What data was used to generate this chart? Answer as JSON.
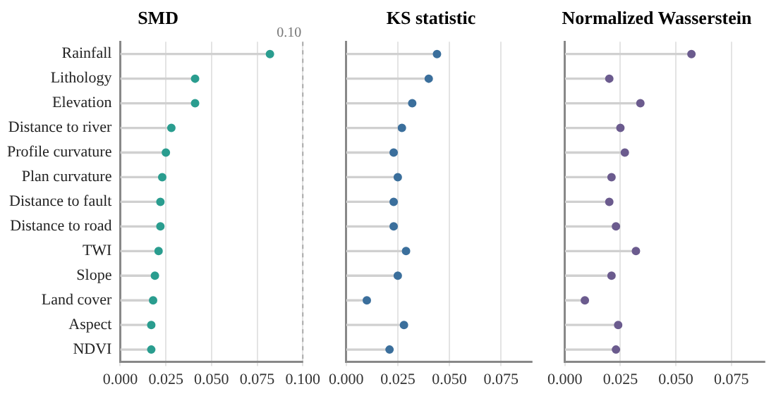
{
  "chart_data": [
    {
      "type": "lollipop",
      "orientation": "horizontal",
      "title": "SMD",
      "categories": [
        "Rainfall",
        "Lithology",
        "Elevation",
        "Distance to river",
        "Profile curvature",
        "Plan curvature",
        "Distance to fault",
        "Distance to road",
        "TWI",
        "Slope",
        "Land cover",
        "Aspect",
        "NDVI"
      ],
      "series": [
        {
          "color": "#2a9d8f",
          "values": [
            0.082,
            0.041,
            0.041,
            0.028,
            0.025,
            0.023,
            0.022,
            0.022,
            0.021,
            0.019,
            0.018,
            0.017,
            0.017
          ]
        }
      ],
      "xlim": [
        0,
        0.1
      ],
      "xticks": [
        {
          "value": 0,
          "label": "0.000"
        },
        {
          "value": 0.025,
          "label": "0.025"
        },
        {
          "value": 0.05,
          "label": "0.050"
        },
        {
          "value": 0.075,
          "label": "0.075"
        },
        {
          "value": 0.1,
          "label": "0.100"
        }
      ],
      "grid": "x",
      "marker": "circle",
      "ref_lines": [
        {
          "axis": "x",
          "value": 0.1,
          "label": "0.10",
          "color": "#aaaaaa",
          "line_style": "dashed"
        }
      ]
    },
    {
      "type": "lollipop",
      "orientation": "horizontal",
      "title": "KS statistic",
      "categories": [
        null,
        null,
        null,
        null,
        null,
        null,
        null,
        null,
        null,
        null,
        null,
        null,
        null
      ],
      "series": [
        {
          "color": "#3b6f9c",
          "values": [
            0.044,
            0.04,
            0.032,
            0.027,
            0.023,
            0.025,
            0.023,
            0.023,
            0.029,
            0.025,
            0.01,
            0.028,
            0.021
          ]
        }
      ],
      "xlim": [
        0,
        0.09
      ],
      "xticks": [
        {
          "value": 0,
          "label": "0.000"
        },
        {
          "value": 0.025,
          "label": "0.025"
        },
        {
          "value": 0.05,
          "label": "0.050"
        },
        {
          "value": 0.075,
          "label": "0.075"
        }
      ],
      "grid": "x",
      "marker": "circle",
      "tick_labels": "x"
    },
    {
      "type": "lollipop",
      "orientation": "horizontal",
      "title": "Normalized Wasserstein",
      "categories": [
        null,
        null,
        null,
        null,
        null,
        null,
        null,
        null,
        null,
        null,
        null,
        null,
        null
      ],
      "series": [
        {
          "color": "#6b5b8e",
          "values": [
            0.057,
            0.02,
            0.034,
            0.025,
            0.027,
            0.021,
            0.02,
            0.023,
            0.032,
            0.021,
            0.009,
            0.024,
            0.023
          ]
        }
      ],
      "xlim": [
        0,
        0.09
      ],
      "xticks": [
        {
          "value": 0,
          "label": "0.000"
        },
        {
          "value": 0.025,
          "label": "0.025"
        },
        {
          "value": 0.05,
          "label": "0.050"
        },
        {
          "value": 0.075,
          "label": "0.075"
        }
      ],
      "grid": "x",
      "marker": "circle",
      "tick_labels": "x"
    }
  ]
}
